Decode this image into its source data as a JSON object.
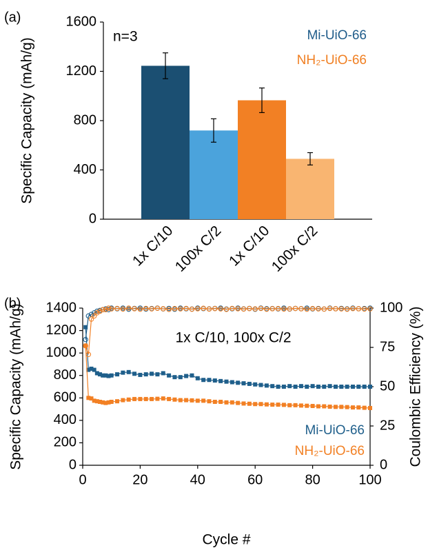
{
  "chart_data": [
    {
      "type": "bar",
      "panel_label": "(a)",
      "ylabel": "Specific Capacity (mAh/g)",
      "annotation": "n=3",
      "categories": [
        "1x C/10",
        "100x C/2",
        "1x C/10",
        "100x C/2"
      ],
      "values": [
        1245,
        720,
        965,
        490
      ],
      "errors": [
        105,
        95,
        100,
        50
      ],
      "colors": [
        "#1b4f72",
        "#4ba3dc",
        "#f28024",
        "#f9b571"
      ],
      "legend": [
        {
          "name": "Mi-UiO-66",
          "color": "#1f5c8a"
        },
        {
          "name": "NH₂-UiO-66",
          "color": "#f07f22"
        }
      ],
      "legend_position": "upper right",
      "ylim": [
        0,
        1600
      ],
      "yticks": [
        0,
        400,
        800,
        1200,
        1600
      ]
    },
    {
      "type": "line",
      "panel_label": "(b)",
      "annotation": "1x C/10, 100x C/2",
      "xlabel": "Cycle #",
      "ylabel": "Specific Capacity (mAh/g)",
      "y2label": "Coulombic Efficiency (%)",
      "legend_position": "lower right",
      "x": [
        1,
        2,
        3,
        4,
        5,
        6,
        7,
        8,
        9,
        10,
        12,
        14,
        16,
        18,
        20,
        22,
        24,
        26,
        28,
        30,
        32,
        34,
        36,
        38,
        40,
        42,
        44,
        46,
        48,
        50,
        52,
        54,
        56,
        58,
        60,
        62,
        64,
        66,
        68,
        70,
        72,
        74,
        76,
        78,
        80,
        82,
        84,
        86,
        88,
        90,
        92,
        94,
        96,
        98,
        100
      ],
      "series": [
        {
          "name": "Mi-UiO-66",
          "color": "#1f5f8b",
          "marker": "square",
          "values": [
            1230,
            850,
            860,
            850,
            820,
            810,
            800,
            800,
            795,
            800,
            810,
            825,
            830,
            815,
            805,
            810,
            815,
            810,
            820,
            800,
            785,
            785,
            795,
            800,
            775,
            760,
            760,
            755,
            750,
            745,
            740,
            735,
            730,
            725,
            720,
            715,
            710,
            705,
            700,
            700,
            705,
            700,
            705,
            700,
            705,
            700,
            700,
            705,
            700,
            700,
            700,
            700,
            700,
            700,
            700
          ]
        },
        {
          "name": "NH₂-UiO-66",
          "color": "#f28024",
          "marker": "square",
          "values": [
            1065,
            600,
            595,
            575,
            570,
            565,
            560,
            555,
            560,
            565,
            570,
            580,
            585,
            590,
            590,
            590,
            590,
            592,
            595,
            590,
            585,
            580,
            580,
            578,
            575,
            575,
            570,
            565,
            565,
            560,
            560,
            555,
            550,
            548,
            545,
            545,
            542,
            540,
            540,
            538,
            535,
            535,
            532,
            530,
            528,
            525,
            525,
            522,
            520,
            520,
            518,
            515,
            515,
            512,
            510
          ]
        },
        {
          "color": "#1f5f8b",
          "marker": "circle-open",
          "axis": "y2",
          "values": [
            80,
            95,
            96,
            97,
            98,
            98.5,
            99,
            99.5,
            99,
            100,
            99.6,
            100,
            99.3,
            99.8,
            100,
            99.4,
            99.7,
            100,
            99.5,
            99.8,
            99.3,
            100,
            99.6,
            99.4,
            100,
            99.7,
            99.5,
            99.8,
            100,
            99.4,
            99.6,
            100,
            99.5,
            99.8,
            99.3,
            100,
            99.6,
            99.7,
            99.5,
            100,
            99.4,
            99.8,
            99.6,
            100,
            99.5,
            99.7,
            99.4,
            100,
            99.6,
            99.8,
            99.5,
            100,
            99.6,
            99.7,
            100
          ]
        },
        {
          "color": "#f28024",
          "marker": "circle-open",
          "axis": "y2",
          "values": [
            76,
            70.5,
            93,
            95,
            97,
            98,
            99,
            99,
            100,
            99.5,
            99.8,
            99.4,
            100,
            99.6,
            99.3,
            99.8,
            99.5,
            99.9,
            99.6,
            99.2,
            99.7,
            99.5,
            99.8,
            99.3,
            99.6,
            99.9,
            99.4,
            99.7,
            99.5,
            99.2,
            99.8,
            99.6,
            99.4,
            99.7,
            99.5,
            99.8,
            99.3,
            99.6,
            99.7,
            99.4,
            99.5,
            99.8,
            99.6,
            99.3,
            99.7,
            99.5,
            99.4,
            99.8,
            99.6,
            99.5,
            99.3,
            99.7,
            99.6,
            99.4,
            99.5
          ]
        }
      ],
      "xlim": [
        0,
        100
      ],
      "xticks": [
        0,
        20,
        40,
        60,
        80,
        100
      ],
      "ylim": [
        0,
        1400
      ],
      "yticks": [
        0,
        200,
        400,
        600,
        800,
        1000,
        1200,
        1400
      ],
      "y2lim": [
        0,
        100
      ],
      "y2ticks": [
        0,
        25,
        50,
        75,
        100
      ]
    }
  ]
}
